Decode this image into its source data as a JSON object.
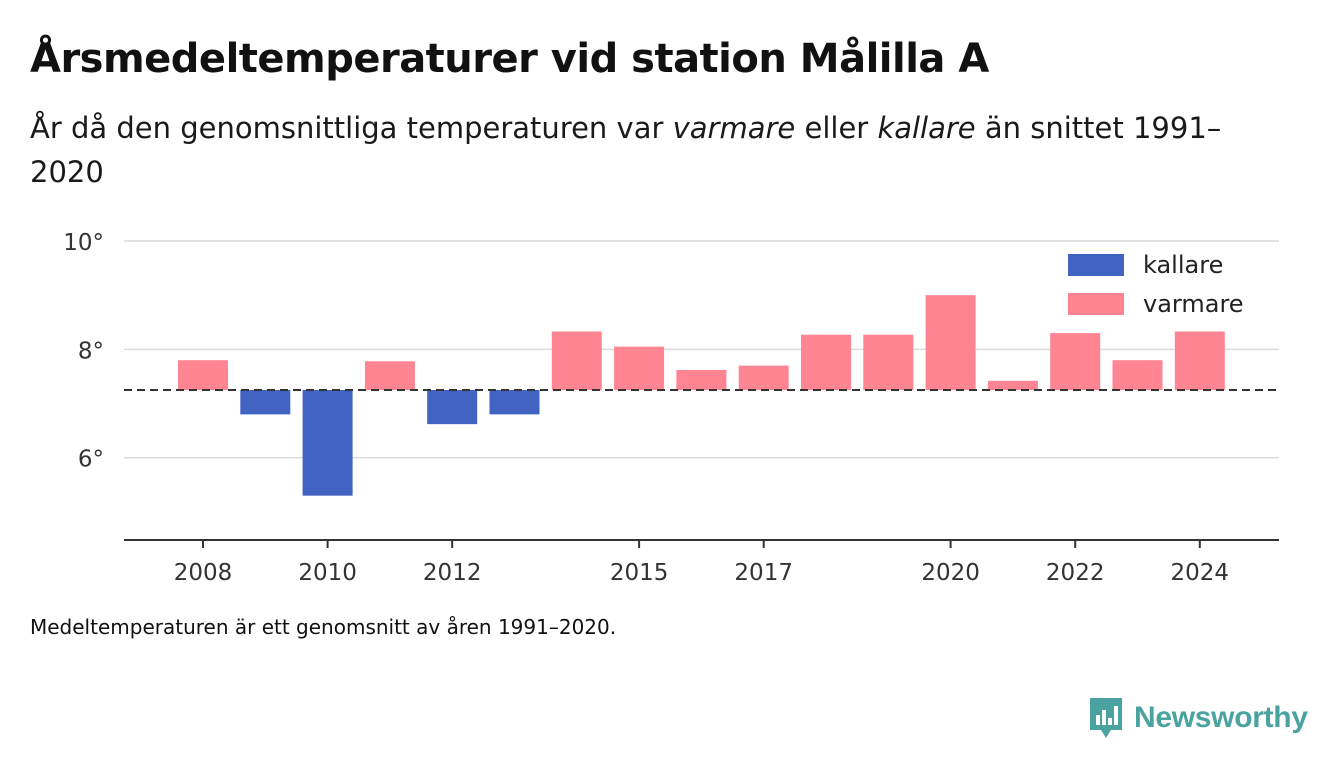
{
  "title": "Årsmedeltemperaturer vid station Målilla A",
  "subtitle": {
    "part1": "År då den genomsnittliga temperaturen var ",
    "warm_word": "varmare",
    "part2": " eller ",
    "cold_word": "kallare",
    "part3": " än snittet 1991–2020"
  },
  "footnote": "Medeltemperaturen är ett genomsnitt av åren 1991–2020.",
  "brand": {
    "name": "Newsworthy",
    "icon": "bar-chart-speech-bubble-icon",
    "color": "#4aa3a1"
  },
  "chart_data": {
    "type": "bar",
    "baseline": 7.25,
    "ylim": [
      4.5,
      10.0
    ],
    "y_ticks": [
      6,
      8,
      10
    ],
    "y_tick_labels": [
      "6°",
      "8°",
      "10°"
    ],
    "x_tick_values": [
      2008,
      2010,
      2012,
      2015,
      2017,
      2020,
      2022,
      2024
    ],
    "x_tick_labels": [
      "2008",
      "2010",
      "2012",
      "2015",
      "2017",
      "2020",
      "2022",
      "2024"
    ],
    "grid": true,
    "legend": {
      "placement": "top-right",
      "items": [
        {
          "label": "kallare",
          "color": "#4163c1"
        },
        {
          "label": "varmare",
          "color": "#ff8593"
        }
      ]
    },
    "colors": {
      "kallare": "#4163c1",
      "varmare": "#ff8593"
    },
    "years": [
      2008,
      2009,
      2010,
      2011,
      2012,
      2013,
      2014,
      2015,
      2016,
      2017,
      2018,
      2019,
      2020,
      2021,
      2022,
      2023,
      2024
    ],
    "values": [
      7.8,
      6.8,
      5.3,
      7.78,
      6.62,
      6.8,
      8.33,
      8.05,
      7.62,
      7.7,
      8.27,
      8.27,
      9.0,
      7.42,
      8.3,
      7.8,
      8.33
    ]
  }
}
